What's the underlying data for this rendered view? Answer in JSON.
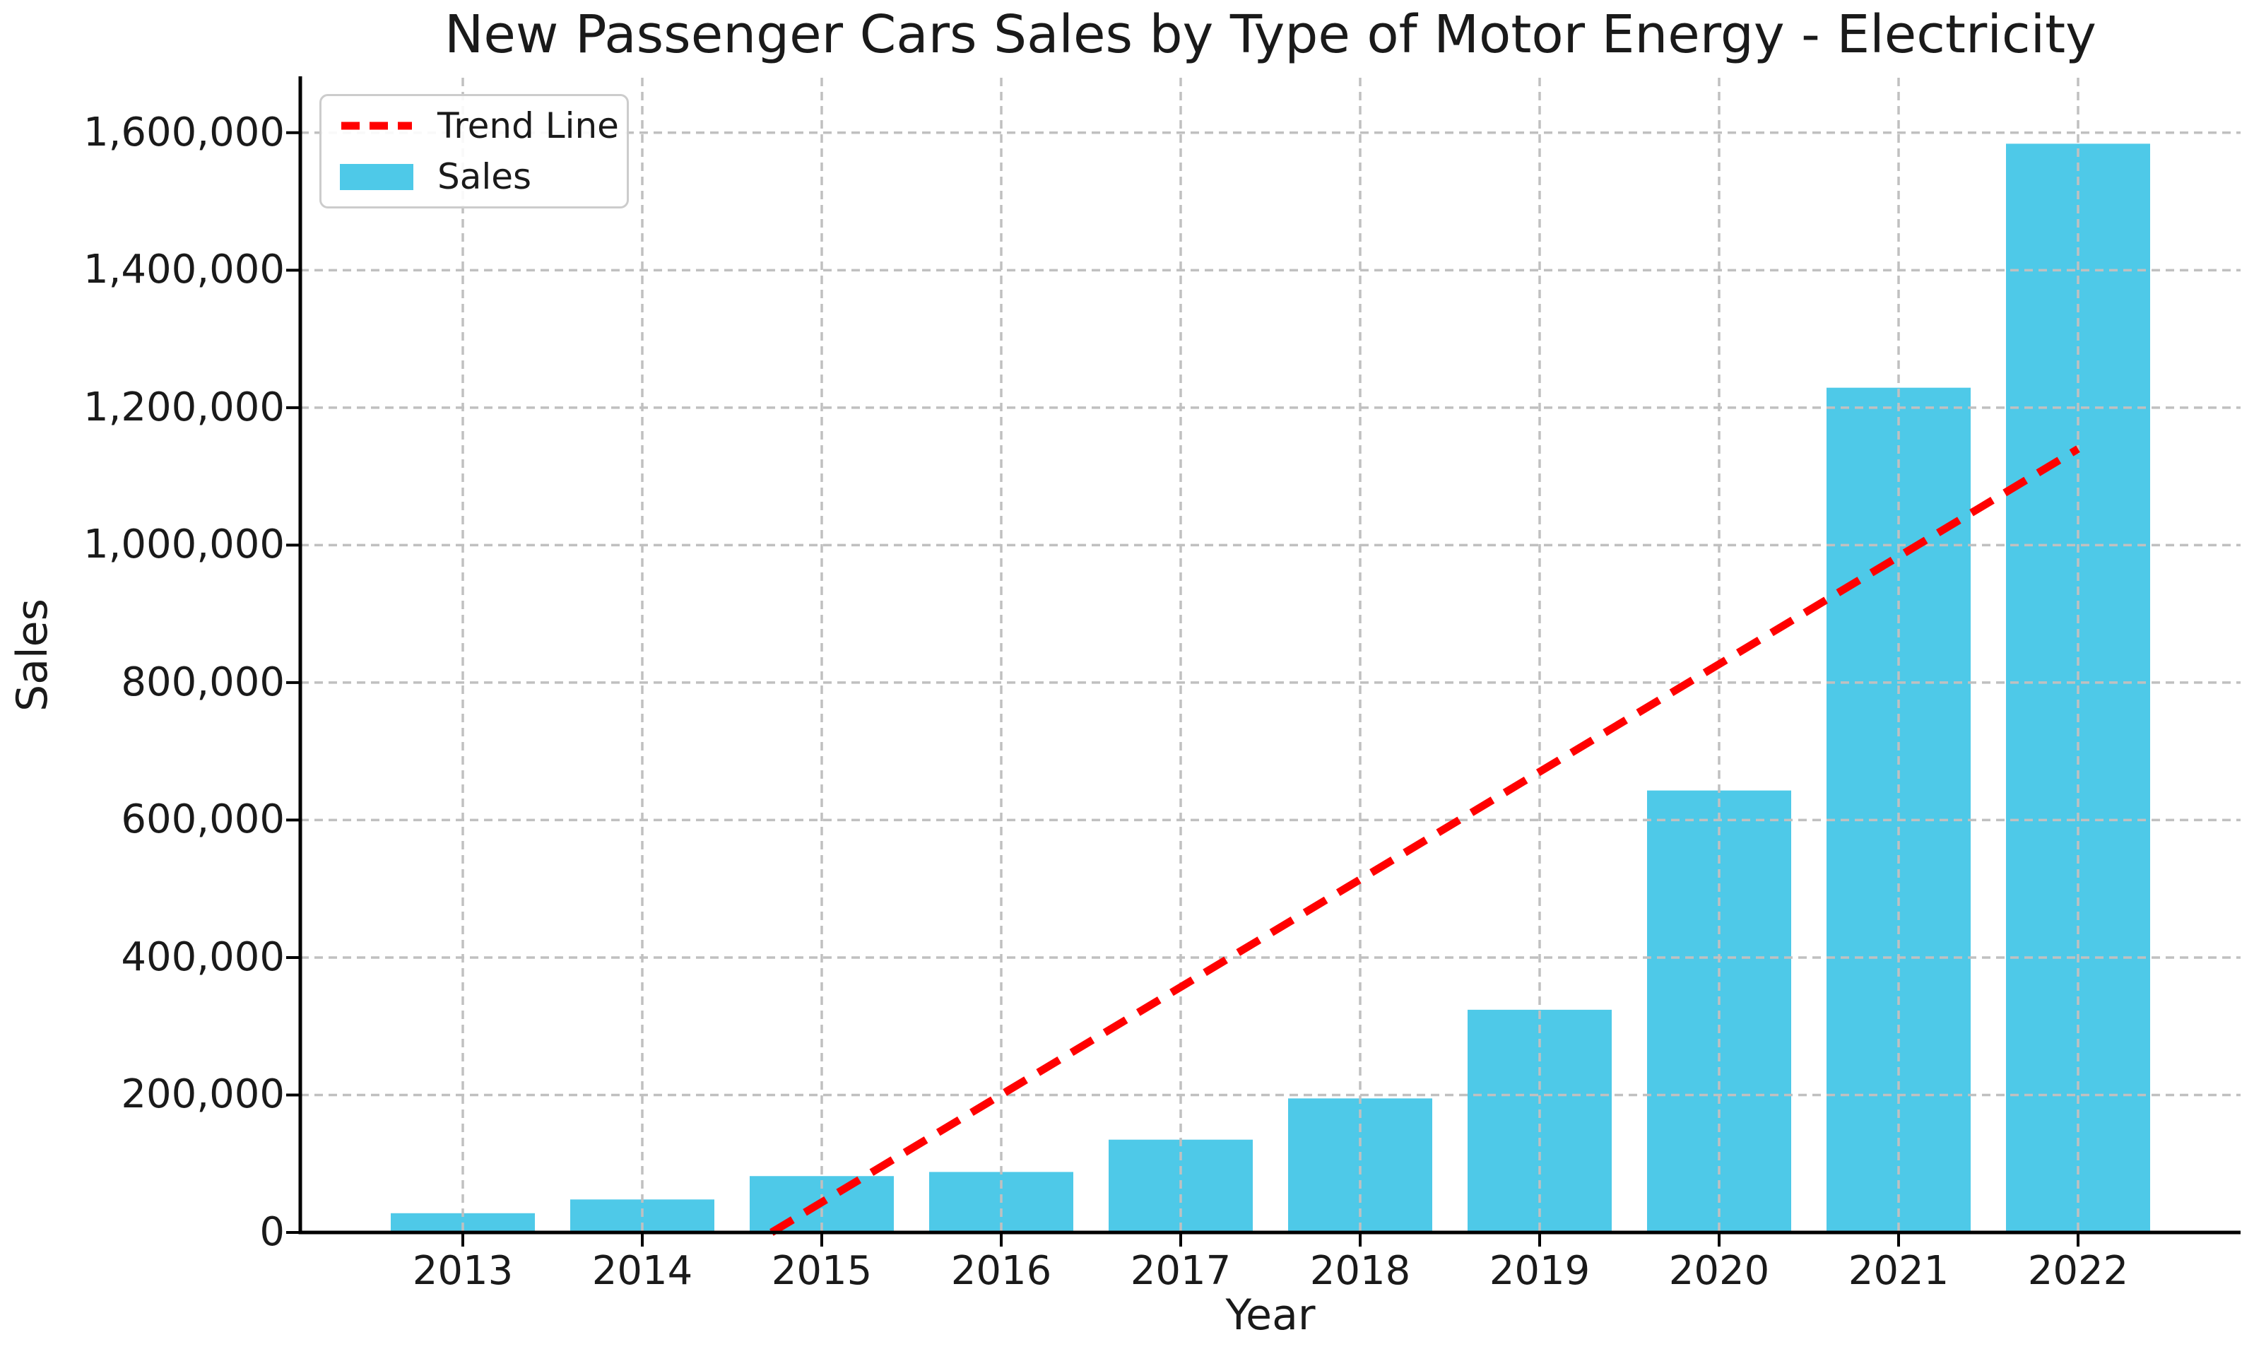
{
  "figure": {
    "title": "New Passenger Cars Sales by Type of Motor Energy - Electricity",
    "xlabel": "Year",
    "ylabel": "Sales"
  },
  "legend": {
    "position": "upper left",
    "items": [
      {
        "label": "Trend Line",
        "type": "dashed-line",
        "color": "#ff0000"
      },
      {
        "label": "Sales",
        "type": "patch",
        "color": "#4ec9e8"
      }
    ]
  },
  "chart_data": {
    "type": "bar",
    "title": "New Passenger Cars Sales by Type of Motor Energy - Electricity",
    "xlabel": "Year",
    "ylabel": "Sales",
    "categories": [
      "2013",
      "2014",
      "2015",
      "2016",
      "2017",
      "2018",
      "2019",
      "2020",
      "2021",
      "2022"
    ],
    "series": [
      {
        "name": "Sales",
        "values": [
          28000,
          48000,
          82000,
          88000,
          135000,
          195000,
          324000,
          643000,
          1229000,
          1584000
        ]
      }
    ],
    "trend_line": {
      "name": "Trend Line",
      "start_year": 2014.72,
      "start_value": 0,
      "end_year": 2022,
      "end_value": 1140000
    },
    "ylim": [
      0,
      1680000
    ],
    "yticks": [
      {
        "v": 0,
        "label": "0"
      },
      {
        "v": 200000,
        "label": "200,000"
      },
      {
        "v": 400000,
        "label": "400,000"
      },
      {
        "v": 600000,
        "label": "600,000"
      },
      {
        "v": 800000,
        "label": "800,000"
      },
      {
        "v": 1000000,
        "label": "1,000,000"
      },
      {
        "v": 1200000,
        "label": "1,200,000"
      },
      {
        "v": 1400000,
        "label": "1,400,000"
      },
      {
        "v": 1600000,
        "label": "1,600,000"
      }
    ],
    "grid": true,
    "grid_above_bars": true,
    "legend_position": "upper left",
    "colors": {
      "bar": "#4ec9e8",
      "trend": "#ff0000",
      "grid": "#c0c0c0",
      "text": "#1a1a1a",
      "spine": "#000000"
    }
  }
}
